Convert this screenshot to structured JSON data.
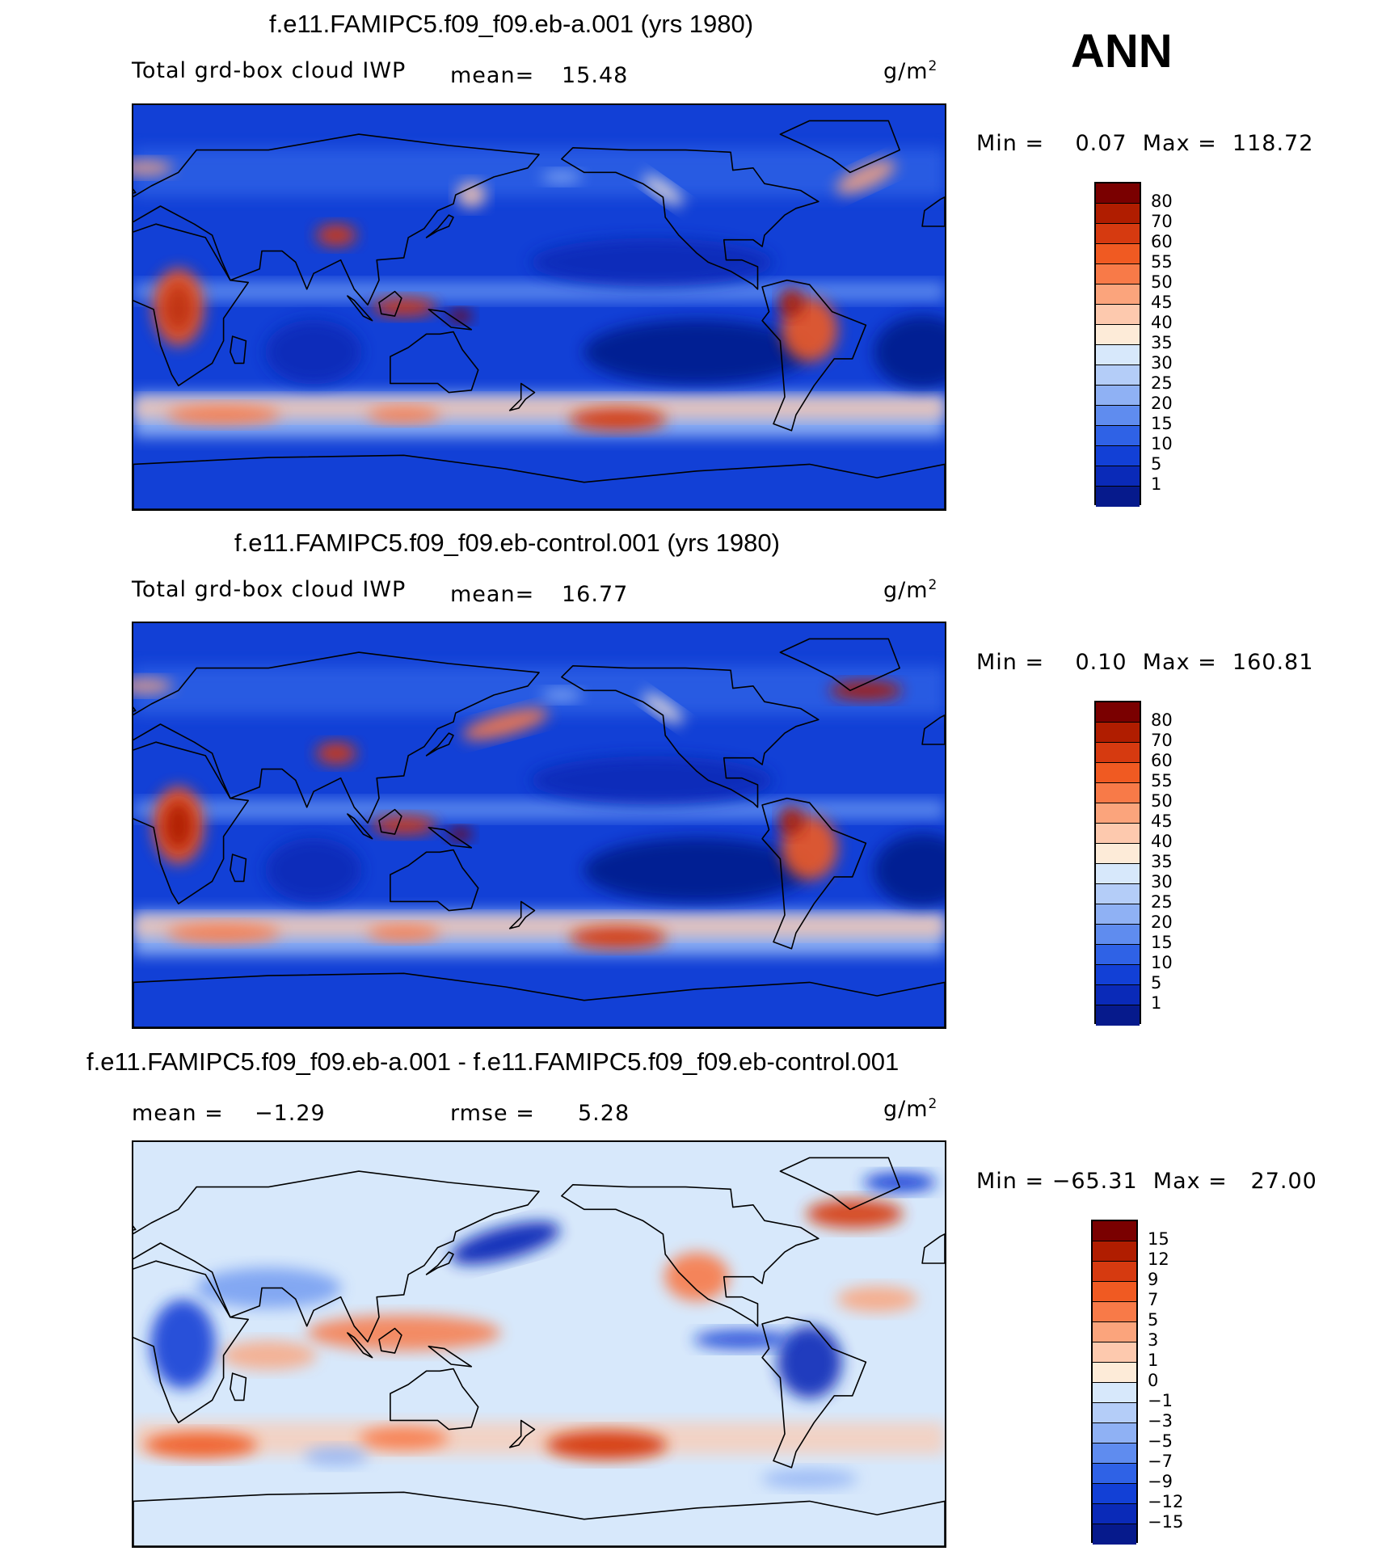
{
  "annotation": "ANN",
  "units_base": "g/m",
  "units_exp": "2",
  "panels": [
    {
      "id": "eb-a",
      "title": "f.e11.FAMIPC5.f09_f09.eb-a.001 (yrs 1980)",
      "variable": "Total grd-box cloud IWP",
      "mean_label": "mean=",
      "mean_value": "15.48",
      "minmax": "Min =    0.07  Max =  118.72",
      "colorbar": {
        "labels": [
          "80",
          "70",
          "60",
          "55",
          "50",
          "45",
          "40",
          "35",
          "30",
          "25",
          "20",
          "15",
          "10",
          "5",
          "1"
        ],
        "colors": [
          "#7a0000",
          "#b01d00",
          "#d63a10",
          "#f05a22",
          "#f87a48",
          "#fba47c",
          "#fdc9ae",
          "#fdebd8",
          "#d7e8fb",
          "#b4cdf8",
          "#8fb1f4",
          "#5f8cef",
          "#2f62e6",
          "#1240d6",
          "#0a2ab8",
          "#061a8c"
        ]
      }
    },
    {
      "id": "eb-control",
      "title": "f.e11.FAMIPC5.f09_f09.eb-control.001 (yrs 1980)",
      "variable": "Total grd-box cloud IWP",
      "mean_label": "mean=",
      "mean_value": "16.77",
      "minmax": "Min =    0.10  Max =  160.81",
      "colorbar": {
        "labels": [
          "80",
          "70",
          "60",
          "55",
          "50",
          "45",
          "40",
          "35",
          "30",
          "25",
          "20",
          "15",
          "10",
          "5",
          "1"
        ],
        "colors": [
          "#7a0000",
          "#b01d00",
          "#d63a10",
          "#f05a22",
          "#f87a48",
          "#fba47c",
          "#fdc9ae",
          "#fdebd8",
          "#d7e8fb",
          "#b4cdf8",
          "#8fb1f4",
          "#5f8cef",
          "#2f62e6",
          "#1240d6",
          "#0a2ab8",
          "#061a8c"
        ]
      }
    },
    {
      "id": "difference",
      "title": "f.e11.FAMIPC5.f09_f09.eb-a.001 - f.e11.FAMIPC5.f09_f09.eb-control.001",
      "mean_label": "mean =",
      "mean_value": "−1.29",
      "rmse_label": "rmse =",
      "rmse_value": "5.28",
      "minmax": "Min = −65.31  Max =   27.00",
      "colorbar": {
        "labels": [
          "15",
          "12",
          "9",
          "7",
          "5",
          "3",
          "1",
          "0",
          "−1",
          "−3",
          "−5",
          "−7",
          "−9",
          "−12",
          "−15"
        ],
        "colors": [
          "#7a0000",
          "#b01d00",
          "#d63a10",
          "#f05a22",
          "#f87a48",
          "#fba47c",
          "#fdc9ae",
          "#fdebd8",
          "#d7e8fb",
          "#b4cdf8",
          "#8fb1f4",
          "#5f8cef",
          "#2f62e6",
          "#1240d6",
          "#0a2ab8",
          "#061a8c"
        ]
      }
    }
  ]
}
